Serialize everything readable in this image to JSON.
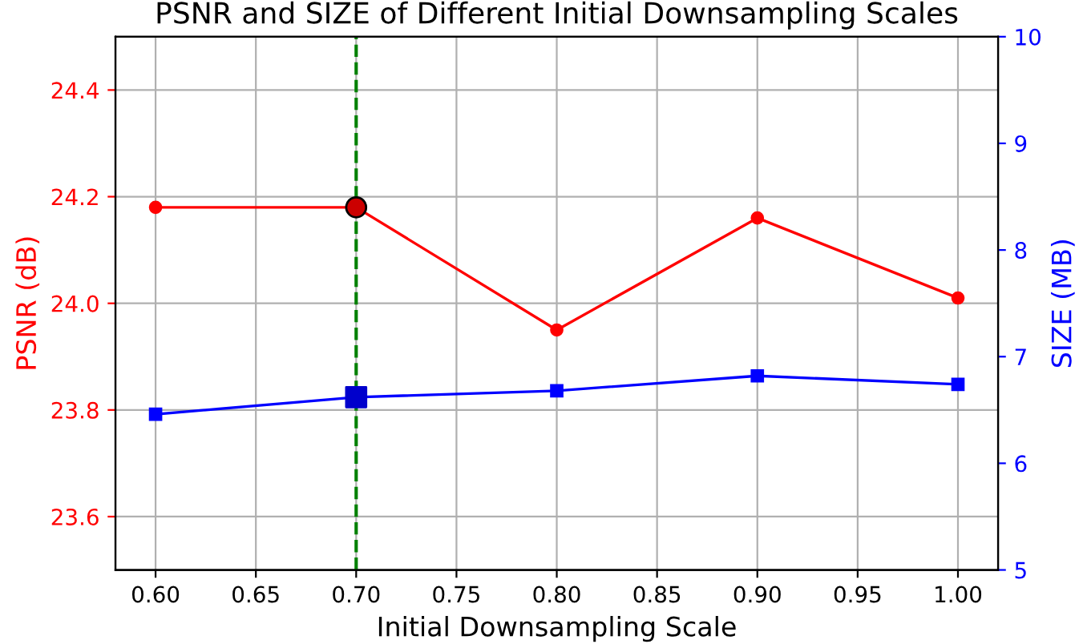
{
  "chart_data": {
    "type": "line",
    "title": "PSNR and SIZE of Different Initial Downsampling Scales",
    "xlabel": "Initial Downsampling Scale",
    "ylabel": "PSNR (dB)",
    "y2label": "SIZE (MB)",
    "x": [
      0.6,
      0.7,
      0.8,
      0.9,
      1.0
    ],
    "series": [
      {
        "color": "#ff0000",
        "values": [
          24.18,
          24.18,
          23.95,
          24.16,
          24.01
        ],
        "marker": "circle"
      },
      {
        "color": "#0000ff",
        "values": [
          6.46,
          6.62,
          6.68,
          6.82,
          6.74
        ],
        "marker": "square",
        "axis": "y2"
      },
      {
        "type": "scatter",
        "color": "#cc0000",
        "x": [
          0.7
        ],
        "values": [
          24.18
        ],
        "marker": "circle"
      },
      {
        "type": "scatter",
        "color": "#0000cc",
        "x": [
          0.7
        ],
        "values": [
          6.62
        ],
        "marker": "square",
        "axis": "y2"
      }
    ],
    "xlim": [
      0.58,
      1.02
    ],
    "xticks": [
      {
        "value": 0.6,
        "label": "0.60"
      },
      {
        "value": 0.65,
        "label": "0.65"
      },
      {
        "value": 0.7,
        "label": "0.70"
      },
      {
        "value": 0.75,
        "label": "0.75"
      },
      {
        "value": 0.8,
        "label": "0.80"
      },
      {
        "value": 0.85,
        "label": "0.85"
      },
      {
        "value": 0.9,
        "label": "0.90"
      },
      {
        "value": 0.95,
        "label": "0.95"
      },
      {
        "value": 1.0,
        "label": "1.00"
      }
    ],
    "ylim": [
      23.5,
      24.5
    ],
    "yticks": [
      {
        "value": 23.6,
        "label": "23.6"
      },
      {
        "value": 23.8,
        "label": "23.8"
      },
      {
        "value": 24.0,
        "label": "24.0"
      },
      {
        "value": 24.2,
        "label": "24.2"
      },
      {
        "value": 24.4,
        "label": "24.4"
      }
    ],
    "y2lim": [
      5,
      10
    ],
    "y2ticks": [
      5,
      6,
      7,
      8,
      9,
      10
    ],
    "ref_lines": [
      {
        "axis": "x",
        "value": 0.7,
        "label": null,
        "color": "#008000",
        "line_style": "dashed"
      }
    ],
    "grid": true,
    "legend": false
  }
}
